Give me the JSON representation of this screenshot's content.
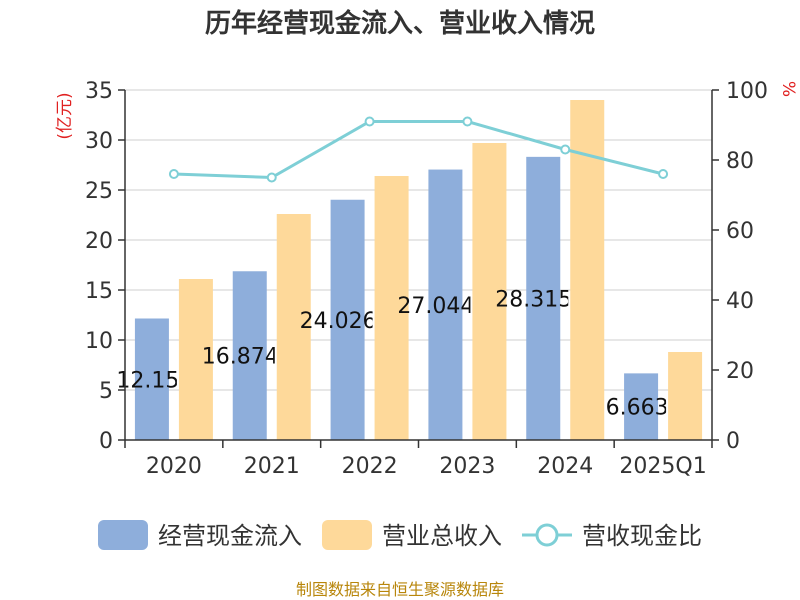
{
  "chart_data": {
    "type": "bar",
    "title": "历年经营现金流入、营业收入情况",
    "categories": [
      "2020",
      "2021",
      "2022",
      "2023",
      "2024",
      "2025Q1"
    ],
    "series": [
      {
        "name": "经营现金流入",
        "type": "bar",
        "axis": "left",
        "color": "#8eaedb",
        "values": [
          12.15,
          16.874,
          24.026,
          27.044,
          28.315,
          6.663
        ],
        "labels": [
          "12.15",
          "16.874",
          "24.026",
          "27.044",
          "28.315",
          "6.663"
        ]
      },
      {
        "name": "营业总收入",
        "type": "bar",
        "axis": "left",
        "color": "#fed99a",
        "values": [
          16.1,
          22.6,
          26.4,
          29.7,
          34.0,
          8.8
        ]
      },
      {
        "name": "营收现金比",
        "type": "line",
        "axis": "right",
        "color": "#7ecfd6",
        "values": [
          76,
          75,
          91,
          91,
          83,
          76
        ]
      }
    ],
    "y_left": {
      "label": "(亿元)",
      "min": 0,
      "max": 35,
      "ticks": [
        0,
        5,
        10,
        15,
        20,
        25,
        30,
        35
      ]
    },
    "y_right": {
      "label": "%",
      "min": 0,
      "max": 100,
      "ticks": [
        0,
        20,
        40,
        60,
        80,
        100
      ]
    },
    "grid": true,
    "legend_position": "bottom"
  },
  "source": "制图数据来自恒生聚源数据库"
}
